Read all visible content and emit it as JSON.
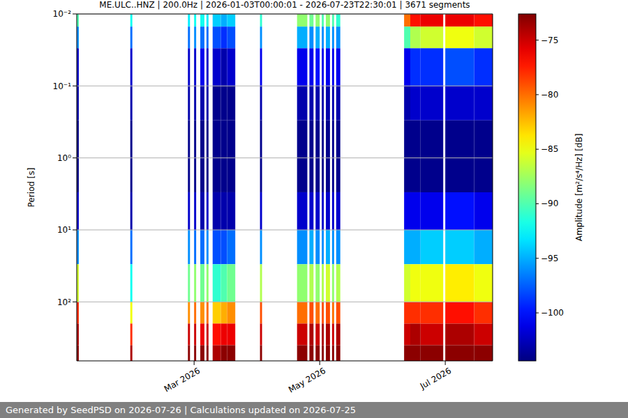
{
  "chart_data": {
    "type": "heatmap",
    "title": "ME.ULC..HNZ | 200.0Hz | 2026-01-03T00:00:01 - 2026-07-23T22:30:01 | 3671 segments",
    "y_label": "Period [s]",
    "log": "y",
    "grid": true,
    "xlim": [
      "2026-01-03",
      "2026-07-24"
    ],
    "xticks": [
      {
        "value": "2026-03-01",
        "label": "Mar 2026"
      },
      {
        "value": "2026-05-01",
        "label": "May 2026"
      },
      {
        "value": "2026-07-01",
        "label": "Jul 2026"
      }
    ],
    "ylim": [
      0.01,
      660
    ],
    "yticks": [
      {
        "value": 0.01,
        "label": "10⁻²"
      },
      {
        "value": 0.1,
        "label": "10⁻¹"
      },
      {
        "value": 1,
        "label": "10⁰"
      },
      {
        "value": 10,
        "label": "10¹"
      },
      {
        "value": 100,
        "label": "10²"
      }
    ],
    "period_bins": [
      0.01,
      0.015,
      0.03,
      0.1,
      0.3,
      1,
      3,
      10,
      30,
      100,
      200,
      400,
      660
    ],
    "columns": [
      {
        "start": "2026-01-03",
        "end": "2026-01-04",
        "values": [
          -90,
          -96,
          -102,
          -103,
          -104,
          -104,
          -102,
          -96,
          -86,
          -78,
          -74,
          -73
        ]
      },
      {
        "start": "2026-01-29",
        "end": "2026-01-30",
        "values": [
          -92,
          -97,
          -102,
          -103,
          -104,
          -104,
          -103,
          -97,
          -92,
          -85,
          -78,
          -74
        ]
      },
      {
        "start": "2026-02-26",
        "end": "2026-02-27",
        "values": [
          -93,
          -97,
          -102,
          -103,
          -104,
          -104,
          -102,
          -96,
          -89,
          -81,
          -75,
          -73
        ]
      },
      {
        "start": "2026-03-01",
        "end": "2026-03-02",
        "values": [
          -92,
          -96,
          -102,
          -103,
          -104,
          -104,
          -102,
          -97,
          -88,
          -80,
          -75,
          -73
        ]
      },
      {
        "start": "2026-03-04",
        "end": "2026-03-06",
        "values": [
          -92,
          -97,
          -101,
          -103,
          -104,
          -104,
          -103,
          -97,
          -89,
          -81,
          -76,
          -73
        ]
      },
      {
        "start": "2026-03-07",
        "end": "2026-03-08",
        "values": [
          -93,
          -97,
          -102,
          -103,
          -104,
          -104,
          -102,
          -96,
          -88,
          -80,
          -75,
          -73
        ]
      },
      {
        "start": "2026-03-10",
        "end": "2026-03-14",
        "values": [
          -94,
          -98,
          -102,
          -104,
          -104,
          -104,
          -103,
          -98,
          -91,
          -83,
          -77,
          -74
        ]
      },
      {
        "start": "2026-03-14",
        "end": "2026-03-17",
        "values": [
          -95,
          -99,
          -103,
          -104,
          -104,
          -104,
          -103,
          -98,
          -90,
          -82,
          -76,
          -73
        ]
      },
      {
        "start": "2026-03-17",
        "end": "2026-03-21",
        "values": [
          -94,
          -98,
          -102,
          -104,
          -104,
          -104,
          -103,
          -97,
          -89,
          -81,
          -76,
          -73
        ]
      },
      {
        "start": "2026-04-02",
        "end": "2026-04-03",
        "values": [
          -91,
          -96,
          -101,
          -103,
          -104,
          -104,
          -102,
          -96,
          -87,
          -79,
          -75,
          -73
        ]
      },
      {
        "start": "2026-04-20",
        "end": "2026-04-25",
        "values": [
          -88,
          -95,
          -101,
          -103,
          -104,
          -104,
          -102,
          -96,
          -88,
          -80,
          -75,
          -73
        ]
      },
      {
        "start": "2026-04-26",
        "end": "2026-04-28",
        "values": [
          -89,
          -96,
          -101,
          -103,
          -104,
          -104,
          -102,
          -95,
          -87,
          -79,
          -74,
          -73
        ]
      },
      {
        "start": "2026-04-29",
        "end": "2026-05-01",
        "values": [
          -88,
          -95,
          -100,
          -103,
          -104,
          -104,
          -102,
          -96,
          -88,
          -80,
          -75,
          -73
        ]
      },
      {
        "start": "2026-05-02",
        "end": "2026-05-03",
        "values": [
          -90,
          -96,
          -101,
          -103,
          -104,
          -104,
          -102,
          -96,
          -87,
          -79,
          -74,
          -73
        ]
      },
      {
        "start": "2026-05-04",
        "end": "2026-05-06",
        "values": [
          -88,
          -95,
          -101,
          -103,
          -104,
          -104,
          -102,
          -95,
          -86,
          -79,
          -74,
          -73
        ]
      },
      {
        "start": "2026-05-07",
        "end": "2026-05-08",
        "values": [
          -90,
          -96,
          -101,
          -103,
          -104,
          -104,
          -102,
          -96,
          -88,
          -80,
          -75,
          -73
        ]
      },
      {
        "start": "2026-05-09",
        "end": "2026-05-11",
        "values": [
          -91,
          -96,
          -101,
          -103,
          -104,
          -104,
          -102,
          -96,
          -87,
          -79,
          -74,
          -73
        ]
      },
      {
        "start": "2026-06-11",
        "end": "2026-06-14",
        "values": [
          -80,
          -90,
          -101,
          -103,
          -104,
          -104,
          -101,
          -95,
          -86,
          -78,
          -75,
          -73
        ]
      },
      {
        "start": "2026-06-14",
        "end": "2026-06-19",
        "values": [
          -77,
          -87,
          -99,
          -102,
          -104,
          -104,
          -101,
          -95,
          -85,
          -78,
          -74,
          -73
        ]
      },
      {
        "start": "2026-06-19",
        "end": "2026-06-30",
        "values": [
          -76,
          -86,
          -99,
          -102,
          -104,
          -104,
          -101,
          -94,
          -85,
          -78,
          -75,
          -73
        ]
      },
      {
        "start": "2026-07-01",
        "end": "2026-07-15",
        "values": [
          -76,
          -85,
          -98,
          -102,
          -104,
          -104,
          -100,
          -94,
          -84,
          -77,
          -74,
          -73
        ]
      },
      {
        "start": "2026-07-15",
        "end": "2026-07-24",
        "values": [
          -77,
          -86,
          -99,
          -102,
          -104,
          -104,
          -101,
          -95,
          -85,
          -78,
          -75,
          -73
        ]
      }
    ],
    "colorbar": {
      "label": "Amplitude [m²/s⁴/Hz] [dB]",
      "range": [
        -104.4,
        -72.6
      ],
      "ticks": [
        -100,
        -95,
        -90,
        -85,
        -80,
        -75
      ]
    },
    "footer": "Generated by SeedPSD on 2026-07-26 | Calculations updated on 2026-07-25"
  }
}
